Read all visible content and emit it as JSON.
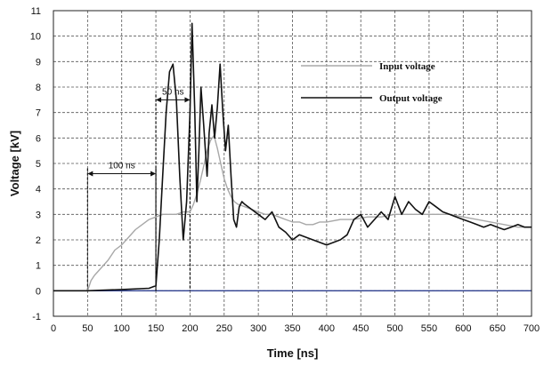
{
  "chart_data": {
    "type": "line",
    "xlabel": "Time [ns]",
    "ylabel": "Voltage [kV]",
    "xlim": [
      0,
      700
    ],
    "ylim": [
      -1,
      11
    ],
    "xticks": [
      0,
      50,
      100,
      150,
      200,
      250,
      300,
      350,
      400,
      450,
      500,
      550,
      600,
      650,
      700
    ],
    "yticks": [
      -1,
      0,
      1,
      2,
      3,
      4,
      5,
      6,
      7,
      8,
      9,
      10,
      11
    ],
    "grid": true,
    "legend_position": "top-right",
    "zero_line_color": "#2e3f8f",
    "series": [
      {
        "name": "Input voltage",
        "color": "#a8a8a8",
        "x": [
          0,
          50,
          55,
          60,
          70,
          80,
          90,
          100,
          110,
          120,
          130,
          140,
          150,
          160,
          170,
          180,
          190,
          200,
          205,
          210,
          215,
          220,
          225,
          230,
          235,
          240,
          245,
          250,
          255,
          260,
          265,
          270,
          280,
          290,
          300,
          310,
          320,
          330,
          340,
          350,
          360,
          370,
          380,
          390,
          400,
          420,
          440,
          460,
          480,
          500,
          520,
          540,
          560,
          580,
          600,
          620,
          640,
          660,
          680,
          700
        ],
        "y": [
          0,
          0,
          0.4,
          0.6,
          0.9,
          1.2,
          1.6,
          1.8,
          2.1,
          2.4,
          2.6,
          2.8,
          2.9,
          3.0,
          3.0,
          3.0,
          3.1,
          3.1,
          3.4,
          3.8,
          4.3,
          4.9,
          5.5,
          5.9,
          6.1,
          5.6,
          5.0,
          4.4,
          4.0,
          3.7,
          3.5,
          3.4,
          3.3,
          3.2,
          3.1,
          3.0,
          3.0,
          2.9,
          2.8,
          2.7,
          2.7,
          2.6,
          2.6,
          2.7,
          2.7,
          2.8,
          2.8,
          2.9,
          2.9,
          3.0,
          3.0,
          3.0,
          3.0,
          3.0,
          2.9,
          2.8,
          2.7,
          2.6,
          2.5,
          2.5
        ]
      },
      {
        "name": "Output voltage",
        "color": "#111111",
        "x": [
          0,
          50,
          100,
          140,
          150,
          155,
          160,
          165,
          170,
          175,
          180,
          185,
          190,
          195,
          200,
          203,
          207,
          210,
          213,
          216,
          220,
          225,
          228,
          232,
          236,
          240,
          244,
          248,
          252,
          256,
          260,
          264,
          268,
          272,
          276,
          280,
          290,
          300,
          310,
          320,
          330,
          340,
          350,
          360,
          370,
          380,
          390,
          400,
          410,
          420,
          430,
          440,
          450,
          460,
          470,
          480,
          490,
          500,
          510,
          520,
          530,
          540,
          550,
          560,
          570,
          580,
          590,
          600,
          610,
          620,
          630,
          640,
          650,
          660,
          670,
          680,
          690,
          700
        ],
        "y": [
          0,
          0,
          0.05,
          0.1,
          0.2,
          2.0,
          4.5,
          7.0,
          8.6,
          8.9,
          7.5,
          4.5,
          2.0,
          3.5,
          7.0,
          10.5,
          7.0,
          3.5,
          5.5,
          8.0,
          6.5,
          4.5,
          6.2,
          7.3,
          6.0,
          7.2,
          8.9,
          7.0,
          5.5,
          6.5,
          4.5,
          2.8,
          2.5,
          3.3,
          3.5,
          3.4,
          3.2,
          3.0,
          2.8,
          3.1,
          2.5,
          2.3,
          2.0,
          2.2,
          2.1,
          2.0,
          1.9,
          1.8,
          1.9,
          2.0,
          2.2,
          2.8,
          3.0,
          2.5,
          2.8,
          3.1,
          2.8,
          3.7,
          3.0,
          3.5,
          3.2,
          3.0,
          3.5,
          3.3,
          3.1,
          3.0,
          2.9,
          2.8,
          2.7,
          2.6,
          2.5,
          2.6,
          2.5,
          2.4,
          2.5,
          2.6,
          2.5,
          2.5
        ]
      }
    ],
    "annotations": [
      {
        "label": "100 ns",
        "x_start": 50,
        "x_end": 150,
        "y": 4.6
      },
      {
        "label": "50 ns",
        "x_start": 150,
        "x_end": 200,
        "y": 7.5
      }
    ]
  }
}
